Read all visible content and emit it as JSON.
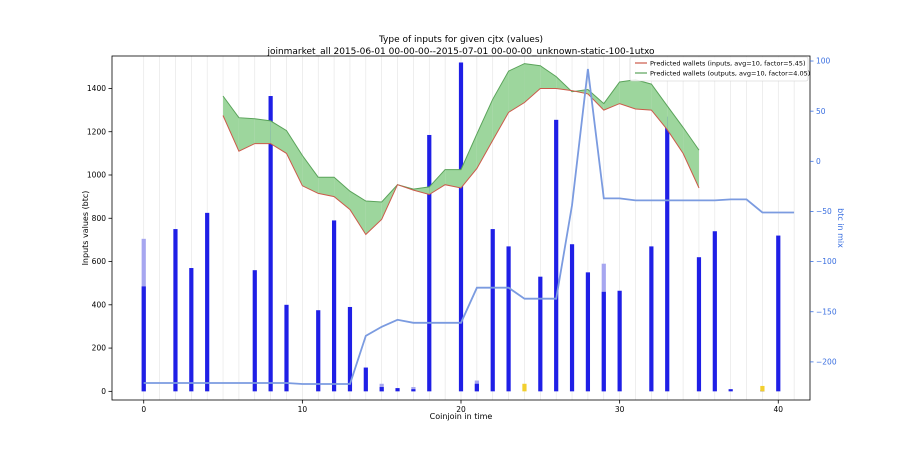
{
  "chart_data": {
    "type": "bar",
    "title": "Type of inputs for given cjtx (values)",
    "subtitle": "joinmarket_all 2015-06-01 00-00-00--2015-07-01 00-00-00_unknown-static-100-1utxo",
    "xlabel": "Coinjoin in time",
    "ylabel": "Inputs values (btc)",
    "y2label": "btc in mix",
    "xlim": [
      -2,
      42
    ],
    "ylim": [
      -40,
      1550
    ],
    "y2lim": [
      -238,
      105
    ],
    "x_ticks": [
      0,
      10,
      20,
      30,
      40
    ],
    "y_ticks": [
      0,
      200,
      400,
      600,
      800,
      1000,
      1200,
      1400
    ],
    "y2_ticks": [
      100,
      50,
      0,
      -50,
      -100,
      -150,
      -200
    ],
    "grid": "vertical lines at each coinjoin",
    "legend_position": "top-right",
    "legend": [
      "Predicted wallets (inputs, avg=10, factor=5.45)",
      "Predicted wallets (outputs, avg=10, factor=4.05)"
    ],
    "colors": {
      "main_bar": "#1f1fe6",
      "light_bar": "#a6a6f0",
      "yellow_bar": "#f2cf2e",
      "inputs_line": "#cc5a4a",
      "inputs_fill": "#ff9c9c",
      "outputs_line": "#5aa35a",
      "outputs_fill": "#9dd69d",
      "mix_line": "#7b9be0",
      "right_axis": "#3a6fe0"
    },
    "bars": {
      "x": [
        0,
        1,
        2,
        3,
        4,
        5,
        6,
        7,
        8,
        9,
        10,
        11,
        12,
        13,
        14,
        15,
        16,
        17,
        18,
        19,
        20,
        21,
        22,
        23,
        24,
        25,
        26,
        27,
        28,
        29,
        30,
        31,
        32,
        33,
        34,
        35,
        36,
        37,
        38,
        39,
        40,
        41
      ],
      "main": [
        485,
        0,
        750,
        570,
        825,
        0,
        0,
        560,
        1365,
        400,
        0,
        375,
        790,
        390,
        110,
        20,
        15,
        10,
        1185,
        0,
        1520,
        35,
        750,
        670,
        0,
        530,
        1255,
        680,
        550,
        460,
        465,
        0,
        670,
        1270,
        0,
        620,
        740,
        10,
        0,
        5,
        720,
        0
      ],
      "light": [
        705,
        0,
        0,
        0,
        0,
        0,
        0,
        0,
        0,
        0,
        0,
        0,
        0,
        0,
        0,
        35,
        0,
        20,
        0,
        0,
        0,
        50,
        0,
        0,
        0,
        0,
        0,
        0,
        0,
        590,
        0,
        0,
        0,
        0,
        0,
        0,
        0,
        0,
        0,
        0,
        0,
        0
      ],
      "yellow": [
        0,
        0,
        0,
        0,
        0,
        0,
        0,
        0,
        0,
        0,
        0,
        0,
        0,
        0,
        0,
        0,
        0,
        0,
        0,
        0,
        0,
        0,
        0,
        0,
        35,
        0,
        0,
        0,
        0,
        0,
        0,
        0,
        0,
        0,
        0,
        0,
        0,
        0,
        0,
        25,
        0,
        0
      ]
    },
    "inputs_wallets": {
      "x": [
        5,
        6,
        7,
        8,
        9,
        10,
        11,
        12,
        13,
        14,
        15,
        16,
        17,
        18,
        19,
        20,
        21,
        22,
        23,
        24,
        25,
        26,
        27,
        28,
        29,
        30,
        31,
        32,
        33,
        34,
        35
      ],
      "y": [
        1275,
        1110,
        1145,
        1145,
        1100,
        950,
        915,
        900,
        840,
        725,
        795,
        955,
        930,
        910,
        955,
        940,
        1030,
        1160,
        1290,
        1335,
        1400,
        1400,
        1390,
        1375,
        1300,
        1330,
        1305,
        1300,
        1210,
        1100,
        940
      ]
    },
    "outputs_wallets": {
      "x": [
        5,
        6,
        7,
        8,
        9,
        10,
        11,
        12,
        13,
        14,
        15,
        16,
        17,
        18,
        19,
        20,
        21,
        22,
        23,
        24,
        25,
        26,
        27,
        28,
        29,
        30,
        31,
        32,
        33,
        34,
        35
      ],
      "y": [
        1365,
        1265,
        1260,
        1250,
        1205,
        1090,
        990,
        990,
        925,
        880,
        875,
        955,
        935,
        945,
        1025,
        1025,
        1190,
        1350,
        1480,
        1515,
        1505,
        1455,
        1385,
        1395,
        1330,
        1430,
        1440,
        1420,
        1320,
        1220,
        1115
      ]
    },
    "btc_in_mix": {
      "x": [
        0,
        1,
        2,
        3,
        4,
        5,
        6,
        7,
        8,
        9,
        10,
        11,
        12,
        13,
        14,
        15,
        16,
        17,
        18,
        19,
        20,
        21,
        22,
        23,
        24,
        25,
        26,
        27,
        28,
        29,
        30,
        31,
        32,
        33,
        34,
        35,
        36,
        37,
        38,
        39,
        40,
        41
      ],
      "y": [
        -221,
        -221,
        -221,
        -221,
        -221,
        -221,
        -221,
        -221,
        -221,
        -221,
        -222,
        -222,
        -222,
        -222,
        -174,
        -165,
        -158,
        -161,
        -161,
        -161,
        -161,
        -126,
        -126,
        -126,
        -137,
        -137,
        -137,
        -44,
        92,
        -37,
        -37,
        -39,
        -39,
        -39,
        -39,
        -39,
        -39,
        -38,
        -38,
        -51,
        -51,
        -51
      ]
    }
  }
}
